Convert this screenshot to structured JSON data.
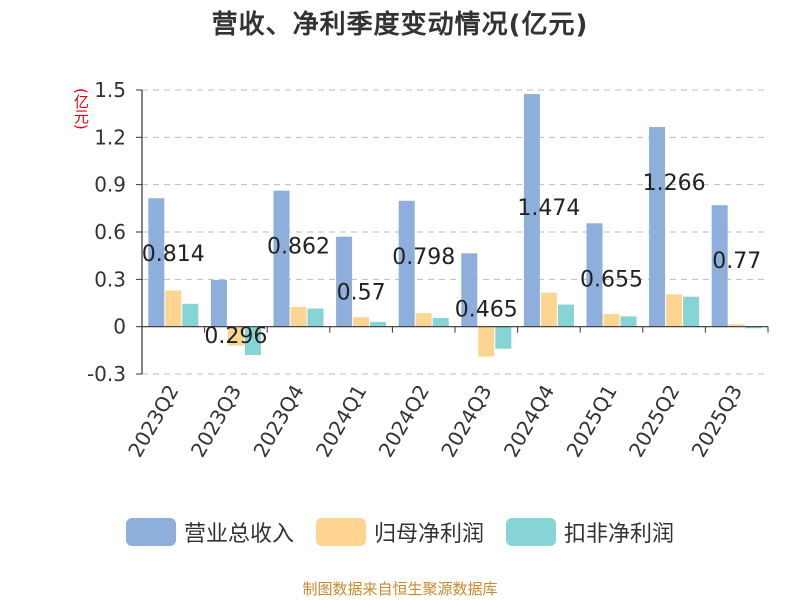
{
  "chart_data": {
    "type": "bar",
    "title": "营收、净利季度变动情况(亿元)",
    "unit": "(亿元)",
    "categories": [
      "2023Q2",
      "2023Q3",
      "2023Q4",
      "2024Q1",
      "2024Q2",
      "2024Q3",
      "2024Q4",
      "2025Q1",
      "2025Q2",
      "2025Q3"
    ],
    "series": [
      {
        "name": "营业总收入",
        "color": "#8eaedc",
        "values": [
          0.814,
          0.296,
          0.862,
          0.57,
          0.798,
          0.465,
          1.474,
          0.655,
          1.266,
          0.77
        ]
      },
      {
        "name": "归母净利润",
        "color": "#fdd591",
        "values": [
          0.23,
          -0.12,
          0.125,
          0.06,
          0.085,
          -0.19,
          0.215,
          0.08,
          0.205,
          0.015
        ]
      },
      {
        "name": "扣非净利润",
        "color": "#87d4d6",
        "values": [
          0.145,
          -0.18,
          0.115,
          0.03,
          0.055,
          -0.14,
          0.14,
          0.065,
          0.19,
          -0.01
        ]
      }
    ],
    "data_labels": [
      "0.814",
      "0.296",
      "0.862",
      "0.57",
      "0.798",
      "0.465",
      "1.474",
      "0.655",
      "1.266",
      "0.77"
    ],
    "yticks": [
      "-0.3",
      "0",
      "0.3",
      "0.6",
      "0.9",
      "1.2",
      "1.5"
    ],
    "ylim": [
      -0.3,
      1.5
    ],
    "grid": true,
    "legend_position": "bottom"
  },
  "source_text": "制图数据来自恒生聚源数据库"
}
